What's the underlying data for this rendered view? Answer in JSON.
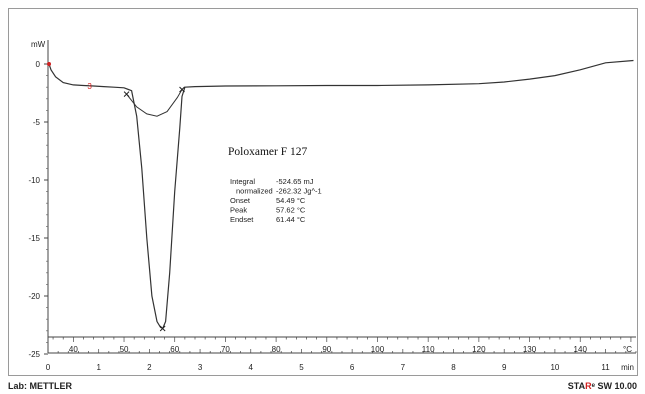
{
  "chart_data": {
    "type": "line",
    "title": "Poloxamer F 127",
    "ylabel": "mW",
    "ylim": [
      -25,
      1
    ],
    "y_ticks": [
      0,
      -5,
      -10,
      -15,
      -20,
      -25
    ],
    "x_temperature": {
      "unit": "°C",
      "range": [
        35,
        151
      ],
      "tick_labels": [
        "40",
        "50",
        "60",
        "70",
        "80",
        "90",
        "100",
        "110",
        "120",
        "130",
        "140"
      ],
      "tick_values": [
        40,
        50,
        60,
        70,
        80,
        90,
        100,
        110,
        120,
        130,
        140
      ]
    },
    "x_time": {
      "unit": "min",
      "range": [
        0,
        11.6
      ],
      "tick_labels": [
        "0",
        "1",
        "2",
        "3",
        "4",
        "5",
        "6",
        "7",
        "8",
        "9",
        "10",
        "11"
      ],
      "tick_values": [
        0,
        1,
        2,
        3,
        4,
        5,
        6,
        7,
        8,
        9,
        10,
        11
      ]
    },
    "series": [
      {
        "x": [
          35.2,
          35.6,
          36.5,
          38,
          40,
          42,
          44,
          46,
          48,
          50,
          51.5,
          52.5,
          53.5,
          54.5,
          55.5,
          56.5,
          57.2,
          57.62,
          58.2,
          59,
          60,
          61,
          61.44,
          62,
          64,
          70,
          80,
          90,
          100,
          110,
          120,
          125,
          130,
          135,
          140,
          145,
          150.5
        ],
        "y": [
          0,
          -0.5,
          -1.1,
          -1.6,
          -1.8,
          -1.85,
          -1.9,
          -1.95,
          -2.0,
          -2.05,
          -2.3,
          -4.5,
          -9.0,
          -15.0,
          -20.0,
          -22.2,
          -22.7,
          -22.8,
          -22.2,
          -18.0,
          -11.0,
          -5.5,
          -2.8,
          -2.0,
          -1.95,
          -1.9,
          -1.88,
          -1.85,
          -1.85,
          -1.8,
          -1.7,
          -1.55,
          -1.3,
          -1.0,
          -0.5,
          0.1,
          0.3
        ]
      }
    ],
    "baseline": {
      "x": [
        50.5,
        52.5,
        54.5,
        56.5,
        58.5,
        60.5,
        61.44
      ],
      "y": [
        -2.6,
        -3.7,
        -4.3,
        -4.5,
        -4.1,
        -2.9,
        -2.2
      ]
    },
    "markers": [
      {
        "x": 50.5,
        "y": -2.6
      },
      {
        "x": 57.62,
        "y": -22.8
      },
      {
        "x": 61.44,
        "y": -2.2
      }
    ],
    "red_marker": {
      "label": "3",
      "x": 43.2,
      "y": -1.9
    },
    "results": [
      {
        "label": "Integral",
        "value": "-524.65 mJ"
      },
      {
        "label": "normalized",
        "value": "-262.32 Jg^-1"
      },
      {
        "label": "Onset",
        "value": "54.49 °C"
      },
      {
        "label": "Peak",
        "value": "57.62 °C"
      },
      {
        "label": "Endset",
        "value": "61.44 °C"
      }
    ],
    "colors": {
      "curve": "#333333",
      "marker_red": "#d02020",
      "text_red": "#d02020"
    }
  },
  "footer": {
    "lab": "Lab: METTLER",
    "sw_prefix": "STA",
    "sw_accent": "R",
    "sw_suffix": "ᵉ SW 10.00"
  }
}
